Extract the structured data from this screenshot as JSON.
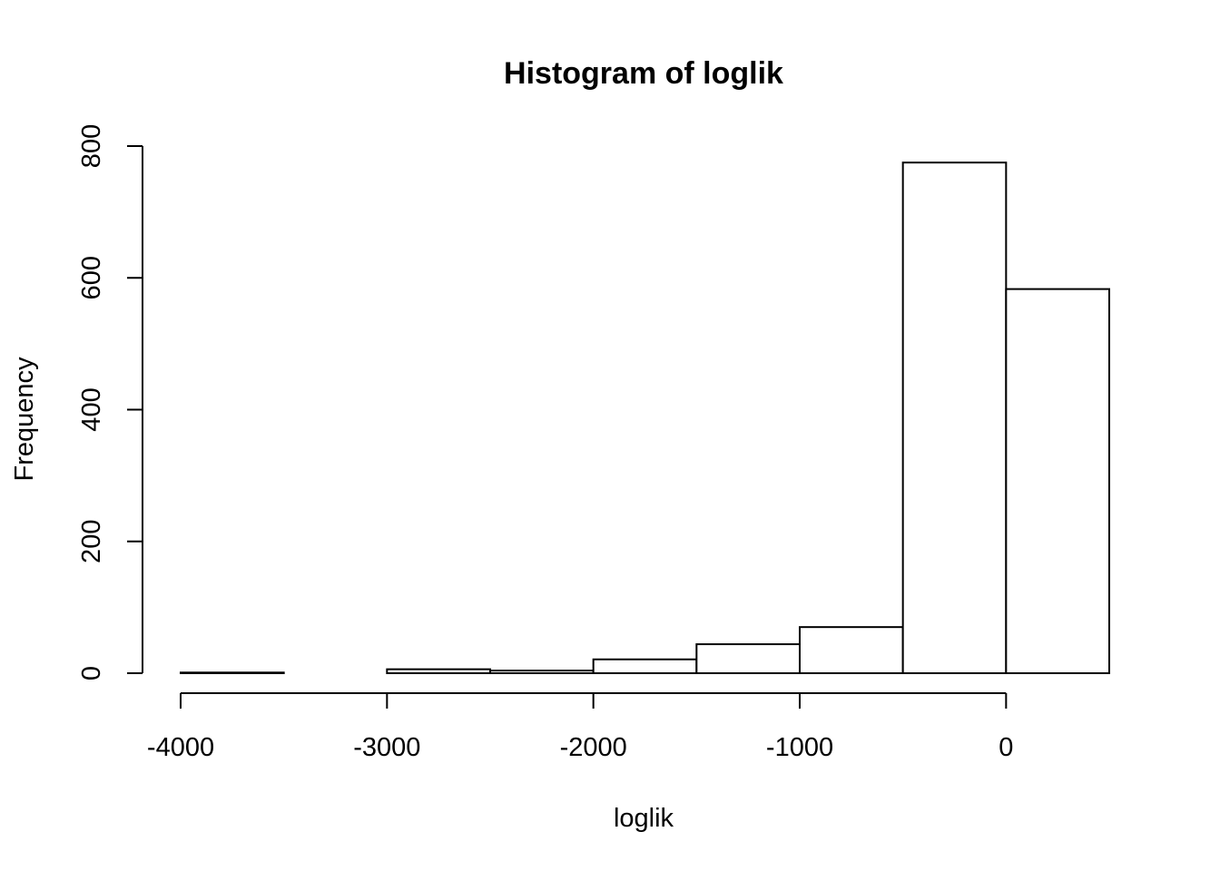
{
  "chart_data": {
    "type": "bar",
    "title": "Histogram of loglik",
    "xlabel": "loglik",
    "ylabel": "Frequency",
    "bins": [
      {
        "from": -4000,
        "to": -3500,
        "count": 1
      },
      {
        "from": -3500,
        "to": -3000,
        "count": 0
      },
      {
        "from": -3000,
        "to": -2500,
        "count": 6
      },
      {
        "from": -2500,
        "to": -2000,
        "count": 4
      },
      {
        "from": -2000,
        "to": -1500,
        "count": 21
      },
      {
        "from": -1500,
        "to": -1000,
        "count": 44
      },
      {
        "from": -1000,
        "to": -500,
        "count": 70
      },
      {
        "from": -500,
        "to": 0,
        "count": 775
      },
      {
        "from": 0,
        "to": 500,
        "count": 583
      }
    ],
    "xticks": [
      -4000,
      -3000,
      -2000,
      -1000,
      0
    ],
    "xtick_labels": [
      "-4000",
      "-3000",
      "-2000",
      "-1000",
      "0"
    ],
    "yticks": [
      0,
      200,
      400,
      600,
      800
    ],
    "ytick_labels": [
      "0",
      "200",
      "400",
      "600",
      "800"
    ],
    "xlim": [
      -4000,
      500
    ],
    "ylim": [
      0,
      800
    ],
    "grid": false,
    "bar_fill": "#ffffff",
    "bar_stroke": "#000000"
  }
}
